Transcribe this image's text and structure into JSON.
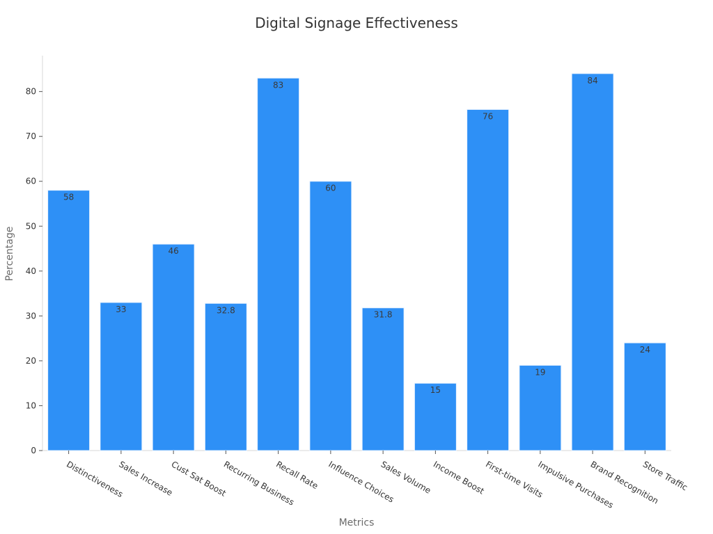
{
  "chart_data": {
    "type": "bar",
    "title": "Digital Signage Effectiveness",
    "xlabel": "Metrics",
    "ylabel": "Percentage",
    "categories": [
      "Distinctiveness",
      "Sales Increase",
      "Cust Sat Boost",
      "Recurring Business",
      "Recall Rate",
      "Influence Choices",
      "Sales Volume",
      "Income Boost",
      "First-time Visits",
      "Impulsive Purchases",
      "Brand Recognition",
      "Store Traffic"
    ],
    "values": [
      58,
      33,
      46,
      32.8,
      83,
      60,
      31.8,
      15,
      76,
      19,
      84,
      24
    ],
    "data_labels": [
      "58",
      "33",
      "46",
      "32.8",
      "83",
      "60",
      "31.8",
      "15",
      "76",
      "19",
      "84",
      "24"
    ],
    "ylim": [
      0,
      88
    ],
    "yticks": [
      0,
      10,
      20,
      30,
      40,
      50,
      60,
      70,
      80
    ],
    "grid": false,
    "bar_color": "#2e90f6"
  }
}
